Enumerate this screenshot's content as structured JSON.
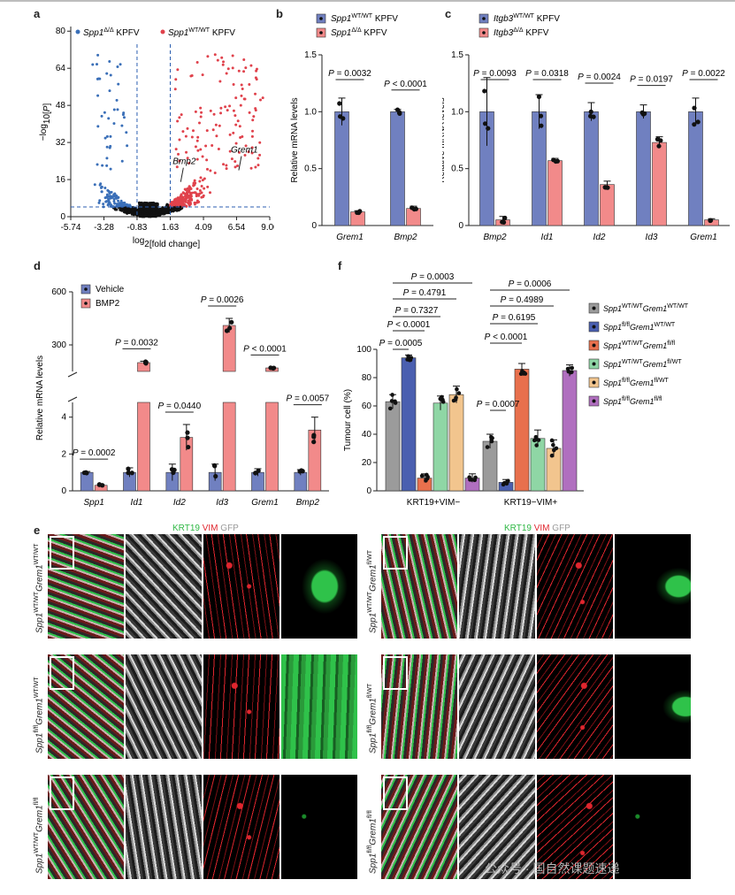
{
  "panels": {
    "a": {
      "label": "a",
      "legend_left": "Spp1",
      "legend_left_sup": "Δ/Δ",
      "legend_left_suffix": " KPFV",
      "legend_right": "Spp1",
      "legend_right_sup": "WT/WT",
      "legend_right_suffix": " KPFV",
      "gene_labels": [
        "Bmp2",
        "Grem1"
      ],
      "colors": {
        "down": "#3a6fb8",
        "up": "#e0424c",
        "ns": "#111111"
      }
    },
    "b": {
      "label": "b"
    },
    "c": {
      "label": "c"
    },
    "d": {
      "label": "d"
    },
    "f": {
      "label": "f"
    },
    "e": {
      "label": "e"
    }
  },
  "chart_data": [
    {
      "id": "a",
      "type": "scatter",
      "title": "",
      "xlabel": "log2[fold change]",
      "ylabel": "-log10[P]",
      "xticks": [
        "-5.74",
        "-3.28",
        "-0.83",
        "1.63",
        "4.09",
        "6.54",
        "9.00"
      ],
      "yticks": [
        "0",
        "16",
        "32",
        "48",
        "64",
        "80"
      ],
      "xlim": [
        -5.74,
        9.0
      ],
      "ylim": [
        0,
        82
      ],
      "thresholds": {
        "x": [
          -0.83,
          1.63
        ],
        "y": 4.2
      },
      "annotations": [
        {
          "text": "Bmp2",
          "x": 2.6,
          "y": 15
        },
        {
          "text": "Grem1",
          "x": 6.9,
          "y": 20
        }
      ]
    },
    {
      "id": "b",
      "type": "bar",
      "ylabel": "Relative mRNA levels",
      "categories": [
        "Grem1",
        "Bmp2"
      ],
      "ylim": [
        0,
        1.5
      ],
      "yticks": [
        "0",
        "0.5",
        "1.0",
        "1.5"
      ],
      "series": [
        {
          "name": "Spp1 WT/WT KPFV",
          "sup": "WT/WT",
          "values": [
            1.0,
            1.0
          ],
          "errors": [
            0.12,
            0.02
          ]
        },
        {
          "name": "Spp1 Δ/Δ KPFV",
          "sup": "Δ/Δ",
          "values": [
            0.12,
            0.15
          ],
          "errors": [
            0.01,
            0.02
          ]
        }
      ],
      "pvalues": [
        "P = 0.0032",
        "P < 0.0001"
      ]
    },
    {
      "id": "c",
      "type": "bar",
      "ylabel": "Relative mRNA levels",
      "categories": [
        "Bmp2",
        "Id1",
        "Id2",
        "Id3",
        "Grem1"
      ],
      "ylim": [
        0,
        1.5
      ],
      "yticks": [
        "0",
        "0.5",
        "1.0",
        "1.5"
      ],
      "series": [
        {
          "name": "Itgb3 WT/WT KPFV",
          "sup": "WT/WT",
          "values": [
            1.0,
            1.0,
            1.0,
            1.0,
            1.0
          ],
          "errors": [
            0.3,
            0.15,
            0.08,
            0.06,
            0.12
          ]
        },
        {
          "name": "Itgb3 Δ/Δ KPFV",
          "sup": "Δ/Δ",
          "values": [
            0.05,
            0.57,
            0.36,
            0.73,
            0.05
          ],
          "errors": [
            0.03,
            0.02,
            0.03,
            0.05,
            0.01
          ]
        }
      ],
      "pvalues": [
        "P = 0.0093",
        "P = 0.0318",
        "P = 0.0024",
        "P = 0.0197",
        "P = 0.0022"
      ]
    },
    {
      "id": "d",
      "type": "bar",
      "ylabel": "Relative mRNA levels",
      "categories": [
        "Spp1",
        "Id1",
        "Id2",
        "Id3",
        "Grem1",
        "Bmp2"
      ],
      "yticks_lower": [
        "0",
        "2",
        "4"
      ],
      "yticks_upper": [
        "300",
        "600"
      ],
      "broken_axis": true,
      "series": [
        {
          "name": "Vehicle",
          "values": [
            1.0,
            1.0,
            1.0,
            1.0,
            1.0,
            1.0
          ],
          "errors": [
            0.05,
            0.25,
            0.45,
            0.45,
            0.2,
            0.15
          ]
        },
        {
          "name": "BMP2",
          "values": [
            0.3,
            200,
            2.9,
            410,
            170,
            3.3
          ],
          "errors": [
            0.05,
            8,
            0.7,
            40,
            3,
            0.7
          ]
        }
      ],
      "pvalues": [
        "P = 0.0002",
        "P = 0.0032",
        "P = 0.0440",
        "P = 0.0026",
        "P < 0.0001",
        "P = 0.0057"
      ]
    },
    {
      "id": "f",
      "type": "bar",
      "ylabel": "Tumour cell (%)",
      "categories": [
        "KRT19+VIM−",
        "KRT19−VIM+"
      ],
      "ylim": [
        0,
        100
      ],
      "yticks": [
        "0",
        "20",
        "40",
        "60",
        "80",
        "100"
      ],
      "series": [
        {
          "name": "Spp1 WT/WT Grem1 WT/WT",
          "a": "WT/WT",
          "b": "WT/WT",
          "color": "#9b9b9b",
          "values": [
            63,
            35
          ],
          "errors": [
            5,
            5
          ]
        },
        {
          "name": "Spp1 fl/fl Grem1 WT/WT",
          "a": "fl/fl",
          "b": "WT/WT",
          "color": "#4a5fb0",
          "values": [
            94,
            6
          ],
          "errors": [
            2,
            2
          ]
        },
        {
          "name": "Spp1 WT/WT Grem1 fl/fl",
          "a": "WT/WT",
          "b": "fl/fl",
          "color": "#e8704d",
          "values": [
            9,
            86
          ],
          "errors": [
            3,
            4
          ]
        },
        {
          "name": "Spp1 WT/WT Grem1 fl/WT",
          "a": "WT/WT",
          "b": "fl/WT",
          "color": "#8fd6a5",
          "values": [
            62,
            37
          ],
          "errors": [
            5,
            6
          ]
        },
        {
          "name": "Spp1 fl/fl Grem1 fl/WT",
          "a": "fl/fl",
          "b": "fl/WT",
          "color": "#f2c58e",
          "values": [
            68,
            30
          ],
          "errors": [
            6,
            6
          ]
        },
        {
          "name": "Spp1 fl/fl Grem1 fl/fl",
          "a": "fl/fl",
          "b": "fl/fl",
          "color": "#b06fbf",
          "values": [
            9,
            85
          ],
          "errors": [
            3,
            4
          ]
        }
      ],
      "pvalues_left": [
        "P = 0.0003",
        "P = 0.4791",
        "P = 0.7327",
        "P < 0.0001",
        "P = 0.0005"
      ],
      "pvalues_right": [
        "P = 0.0006",
        "P = 0.4989",
        "P = 0.6195",
        "P < 0.0001",
        "P = 0.0007"
      ]
    }
  ],
  "panel_e": {
    "channel_label": {
      "krt19": "KRT19",
      "vim": "VIM",
      "gfp": "GFP"
    },
    "colors": {
      "krt19": "#2fc24a",
      "vim": "#e0262e",
      "gfp": "#bdbdbd"
    },
    "rows_left": [
      {
        "a": "WT/WT",
        "b": "WT/WT"
      },
      {
        "a": "fl/fl",
        "b": "WT/WT"
      },
      {
        "a": "WT/WT",
        "b": "fl/fl"
      }
    ],
    "rows_right": [
      {
        "a": "WT/WT",
        "b": "fl/WT"
      },
      {
        "a": "fl/fl",
        "b": "fl/WT"
      },
      {
        "a": "fl/fl",
        "b": "fl/fl"
      }
    ]
  },
  "watermark": "公众号 · 国自然课题速递"
}
